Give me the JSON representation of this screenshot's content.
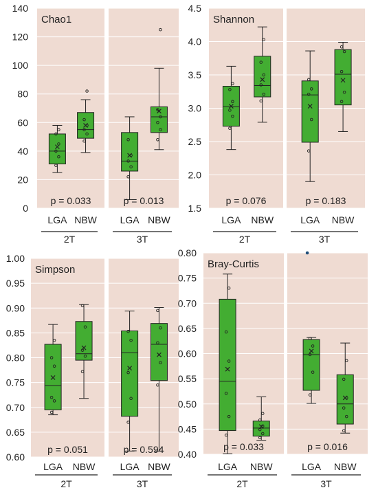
{
  "chart_data": [
    {
      "type": "box",
      "title": "Chao1",
      "ylim": [
        0,
        140
      ],
      "yticks": [
        "0",
        "20",
        "40",
        "60",
        "80",
        "100",
        "120",
        "140"
      ],
      "grid": true,
      "groups": [
        {
          "group_label": "2T",
          "p_label": "p = 0.033",
          "categories": [
            "LGA",
            "NBW"
          ],
          "boxes": [
            {
              "category": "LGA",
              "whisker_low": 25,
              "q1": 31,
              "median": 40,
              "q3": 52,
              "whisker_high": 58,
              "mean": 43,
              "points": [
                30,
                36,
                40,
                45,
                52,
                55
              ]
            },
            {
              "category": "NBW",
              "whisker_low": 39,
              "q1": 49,
              "median": 55,
              "q3": 67,
              "whisker_high": 76,
              "mean": 58,
              "points": [
                47,
                52,
                55,
                58,
                62,
                82
              ]
            }
          ]
        },
        {
          "group_label": "3T",
          "p_label": "p = 0.013",
          "categories": [
            "LGA",
            "NBW"
          ],
          "boxes": [
            {
              "category": "LGA",
              "whisker_low": 6,
              "q1": 26,
              "median": 33,
              "q3": 53,
              "whisker_high": 64,
              "mean": 37,
              "points": [
                22,
                29,
                33,
                37,
                48
              ]
            },
            {
              "category": "NBW",
              "whisker_low": 41,
              "q1": 53,
              "median": 64,
              "q3": 71,
              "whisker_high": 98,
              "mean": 68,
              "points": [
                48,
                55,
                60,
                64,
                69,
                125
              ]
            }
          ]
        }
      ]
    },
    {
      "type": "box",
      "title": "Shannon",
      "ylim": [
        1.5,
        4.5
      ],
      "yticks": [
        "1.5",
        "2.0",
        "2.5",
        "3.0",
        "3.5",
        "4.0",
        "4.5"
      ],
      "grid": true,
      "groups": [
        {
          "group_label": "2T",
          "p_label": "p = 0.076",
          "categories": [
            "LGA",
            "NBW"
          ],
          "boxes": [
            {
              "category": "LGA",
              "whisker_low": 2.38,
              "q1": 2.73,
              "median": 3.02,
              "q3": 3.33,
              "whisker_high": 3.63,
              "mean": 3.03,
              "points": [
                2.7,
                2.88,
                2.97,
                3.1,
                3.28,
                3.37
              ]
            },
            {
              "category": "NBW",
              "whisker_low": 2.79,
              "q1": 3.17,
              "median": 3.34,
              "q3": 3.78,
              "whisker_high": 4.22,
              "mean": 3.43,
              "points": [
                3.11,
                3.21,
                3.35,
                3.5,
                3.69,
                4.03
              ]
            }
          ]
        },
        {
          "group_label": "3T",
          "p_label": "p = 0.183",
          "categories": [
            "LGA",
            "NBW"
          ],
          "boxes": [
            {
              "category": "LGA",
              "whisker_low": 1.9,
              "q1": 2.49,
              "median": 3.2,
              "q3": 3.41,
              "whisker_high": 3.86,
              "mean": 3.03,
              "points": [
                2.36,
                2.83,
                3.21,
                3.29,
                3.43
              ]
            },
            {
              "category": "NBW",
              "whisker_low": 2.65,
              "q1": 3.05,
              "median": 3.51,
              "q3": 3.88,
              "whisker_high": 3.99,
              "mean": 3.42,
              "points": [
                3.1,
                3.24,
                3.55,
                3.85,
                3.92
              ]
            }
          ]
        }
      ]
    },
    {
      "type": "box",
      "title": "Simpson",
      "ylim": [
        0.6,
        1.0
      ],
      "yticks": [
        "0.60",
        "0.65",
        "0.70",
        "0.75",
        "0.80",
        "0.85",
        "0.90",
        "0.95",
        "1.00"
      ],
      "grid": true,
      "groups": [
        {
          "group_label": "2T",
          "p_label": "p = 0.051",
          "categories": [
            "LGA",
            "NBW"
          ],
          "boxes": [
            {
              "category": "LGA",
              "whisker_low": 0.685,
              "q1": 0.695,
              "median": 0.744,
              "q3": 0.827,
              "whisker_high": 0.867,
              "mean": 0.76,
              "points": [
                0.69,
                0.713,
                0.72,
                0.783,
                0.8,
                0.835
              ]
            },
            {
              "category": "NBW",
              "whisker_low": 0.718,
              "q1": 0.795,
              "median": 0.808,
              "q3": 0.873,
              "whisker_high": 0.907,
              "mean": 0.82,
              "points": [
                0.772,
                0.803,
                0.815,
                0.862,
                0.905
              ]
            }
          ]
        },
        {
          "group_label": "3T",
          "p_label": "p = 0.594",
          "categories": [
            "LGA",
            "NBW"
          ],
          "boxes": [
            {
              "category": "LGA",
              "whisker_low": 0.612,
              "q1": 0.682,
              "median": 0.81,
              "q3": 0.854,
              "whisker_high": 0.894,
              "mean": 0.779,
              "points": [
                0.67,
                0.718,
                0.77,
                0.835,
                0.853
              ]
            },
            {
              "category": "NBW",
              "whisker_low": 0.612,
              "q1": 0.754,
              "median": 0.827,
              "q3": 0.869,
              "whisker_high": 0.901,
              "mean": 0.806,
              "points": [
                0.745,
                0.79,
                0.83,
                0.86,
                0.895
              ]
            }
          ]
        }
      ]
    },
    {
      "type": "box",
      "title": "Bray-Curtis",
      "ylim": [
        0.4,
        0.8
      ],
      "yticks": [
        "0.40",
        "0.45",
        "0.50",
        "0.55",
        "0.60",
        "0.65",
        "0.70",
        "0.75",
        "0.80"
      ],
      "grid": true,
      "groups": [
        {
          "group_label": "2T",
          "p_label": "p = 0.033",
          "categories": [
            "LGA",
            "NBW"
          ],
          "boxes": [
            {
              "category": "LGA",
              "whisker_low": 0.401,
              "q1": 0.447,
              "median": 0.545,
              "q3": 0.708,
              "whisker_high": 0.758,
              "mean": 0.569,
              "points": [
                0.438,
                0.475,
                0.521,
                0.585,
                0.643,
                0.73
              ]
            },
            {
              "category": "NBW",
              "whisker_low": 0.428,
              "q1": 0.436,
              "median": 0.452,
              "q3": 0.466,
              "whisker_high": 0.514,
              "mean": 0.455,
              "points": [
                0.433,
                0.441,
                0.449,
                0.456,
                0.468,
                0.481
              ]
            }
          ]
        },
        {
          "group_label": "3T",
          "p_label": "p = 0.016",
          "categories": [
            "LGA",
            "NBW"
          ],
          "boxes": [
            {
              "category": "LGA",
              "whisker_low": 0.501,
              "q1": 0.527,
              "median": 0.598,
              "q3": 0.628,
              "whisker_high": 0.632,
              "mean": 0.605,
              "points": [
                0.518,
                0.563,
                0.598,
                0.615,
                0.63
              ],
              "outliers": [
                0.8
              ]
            },
            {
              "category": "NBW",
              "whisker_low": 0.442,
              "q1": 0.46,
              "median": 0.5,
              "q3": 0.558,
              "whisker_high": 0.621,
              "mean": 0.512,
              "points": [
                0.447,
                0.475,
                0.492,
                0.512,
                0.549,
                0.586
              ]
            }
          ]
        }
      ]
    }
  ],
  "colors": {
    "panel_bg": "#efdbd2",
    "box_fill": "#43ad32",
    "box_edge": "#222222",
    "grid": "#ffffff",
    "outlier": "#1f4e79"
  }
}
